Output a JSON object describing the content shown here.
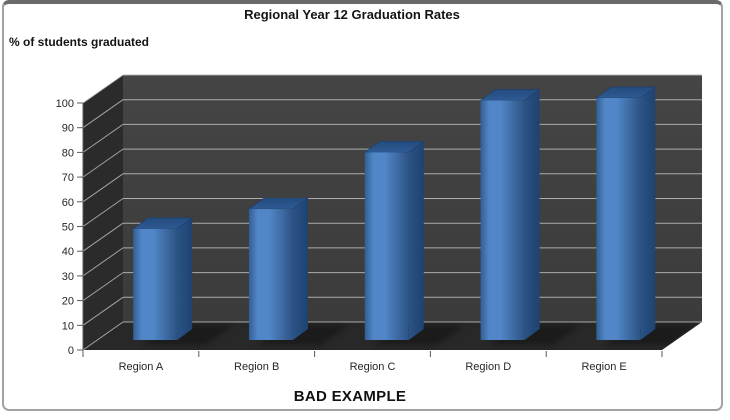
{
  "frame": {
    "border_color": "#a2a2a2",
    "top_border_color": "#6a6a6a",
    "background": "#ffffff"
  },
  "chart_data": {
    "type": "bar",
    "style": "3d-column",
    "title": "Regional Year 12 Graduation Rates",
    "ylabel": "% of students graduated",
    "xlabel": "",
    "annotation": "BAD EXAMPLE",
    "categories": [
      "Region A",
      "Region B",
      "Region C",
      "Region D",
      "Region E"
    ],
    "values": [
      45,
      53,
      76,
      97,
      98
    ],
    "ylim": [
      0,
      100
    ],
    "y_ticks": [
      0,
      10,
      20,
      30,
      40,
      50,
      60,
      70,
      80,
      90,
      100
    ],
    "grid": true,
    "legend": "none",
    "colors": {
      "bar_front_left": "#335f93",
      "bar_front_light": "#5187c9",
      "bar_front_right": "#2d5384",
      "bar_top_near": "#2e5a93",
      "bar_top_far": "#234b7e",
      "bar_side_top": "#2a5387",
      "bar_side_bottom": "#1f4270",
      "back_wall": "#3f3f3f",
      "side_wall": "#2b2b2b",
      "floor": "#282828",
      "gridline": "#b8b8b8",
      "axis": "#5a5a5a",
      "text": "#262626"
    }
  }
}
